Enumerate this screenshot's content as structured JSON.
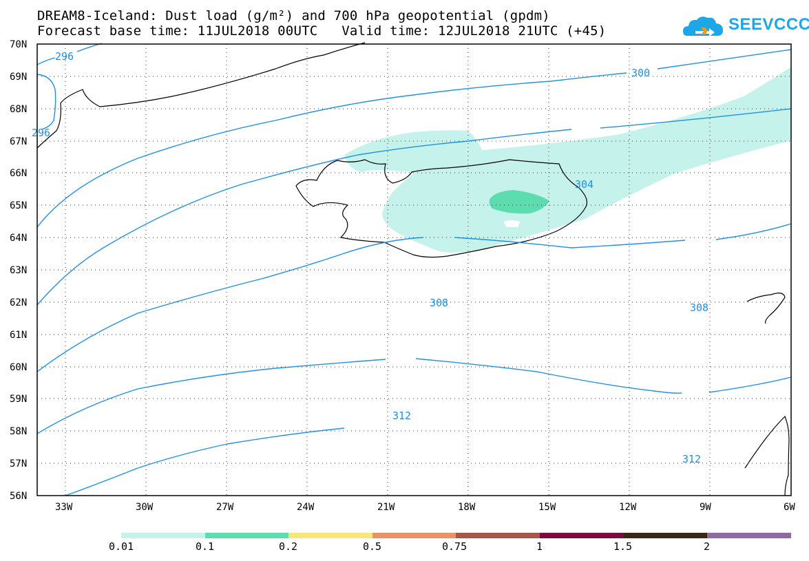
{
  "header": {
    "title_line1": "DREAM8-Iceland: Dust load (g/m²) and 700 hPa geopotential (gpdm)",
    "title_line2": "Forecast base time: 11JUL2018 00UTC   Valid time: 12JUL2018 21UTC (+45)"
  },
  "logo": {
    "text": "SEEVCCC",
    "icon": "cloud-icon"
  },
  "map": {
    "lat_labels": [
      "70N",
      "69N",
      "68N",
      "67N",
      "66N",
      "65N",
      "64N",
      "63N",
      "62N",
      "61N",
      "60N",
      "59N",
      "58N",
      "57N",
      "56N"
    ],
    "lon_labels": [
      "33W",
      "30W",
      "27W",
      "24W",
      "21W",
      "18W",
      "15W",
      "12W",
      "9W",
      "6W"
    ],
    "contour_labels": [
      "296",
      "296",
      "300",
      "304",
      "308",
      "308",
      "312",
      "312"
    ],
    "colors": {
      "contour": "#1e90e8",
      "dust_low": "#c5f2ea",
      "dust_mid": "#5ddcb0"
    }
  },
  "legend": {
    "labels": [
      "0.01",
      "0.1",
      "0.2",
      "0.5",
      "0.75",
      "1",
      "1.5",
      "2"
    ],
    "colors": [
      "#c5f2ea",
      "#5ddcb0",
      "#f7e679",
      "#e99167",
      "#a8574a",
      "#7d0a3a",
      "#3a2614",
      "#8f6aa0"
    ]
  }
}
